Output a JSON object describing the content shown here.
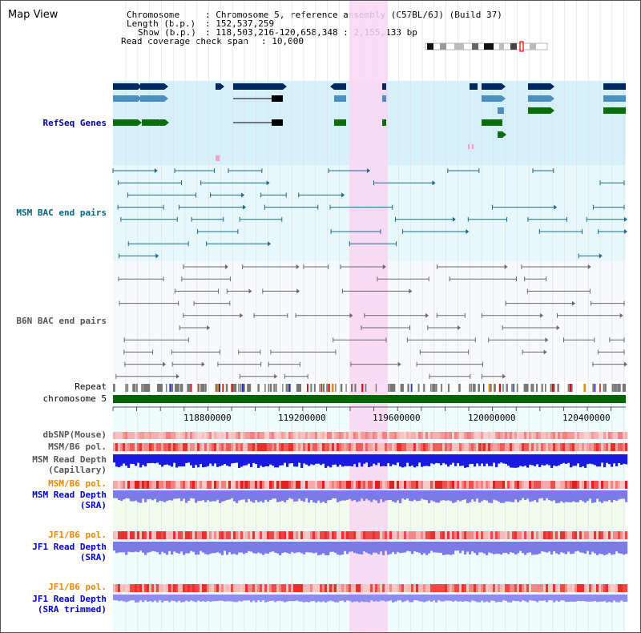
{
  "title": "Map View",
  "info": {
    "chromosome_label": "Chromosome",
    "chromosome_value": ": Chromosome 5, reference assembly (C57BL/6J) (Build 37)",
    "length_label": "Length (b.p.)",
    "length_value": ": 152,537,259",
    "show_label": "Show (b.p.)",
    "show_value": ": 118,503,216-120,658,348 : 2,155,133 bp",
    "coverage_label": "Read coverage check span",
    "coverage_value": ": 10,000"
  },
  "tracks": {
    "refseq": "RefSeq Genes",
    "msm_bac": "MSM BAC end pairs",
    "b6n_bac": "B6N BAC end pairs",
    "repeat": "Repeat",
    "chromosome": "chromosome 5",
    "dbsnp": "dbSNP(Mouse)",
    "msm_b6_pol": "MSM/B6 pol.",
    "msm_depth_cap_1": "MSM Read Depth",
    "msm_depth_cap_2": "(Capillary)",
    "msm_b6_pol_2": "MSM/B6 pol.",
    "msm_depth_sra_1": "MSM Read Depth",
    "msm_depth_sra_2": "(SRA)",
    "jf1_b6_pol": "JF1/B6 pol.",
    "jf1_depth_sra_1": "JF1 Read Depth",
    "jf1_depth_sra_2": "(SRA)",
    "jf1_b6_pol_2": "JF1/B6 pol.",
    "jf1_depth_trim_1": "JF1 Read Depth",
    "jf1_depth_trim_2": "(SRA trimmed)"
  },
  "ruler": {
    "ticks": [
      "118800000",
      "119200000",
      "119600000",
      "120000000",
      "120400000"
    ]
  },
  "colors": {
    "refseq_bg": "#d6f0fa",
    "msm_bg": "#e6f8fb",
    "b6n_bg": "#f7f9fc",
    "highlight": "#f9d6f2",
    "gene_navy": "#002a5e",
    "gene_blue": "#4a8fbf",
    "gene_green": "#0a6e0a",
    "chrom_green": "#006600",
    "depth_blue": "#1a1ae0",
    "sra_blue": "#7a7aea",
    "pol_red": "#ee3333"
  }
}
